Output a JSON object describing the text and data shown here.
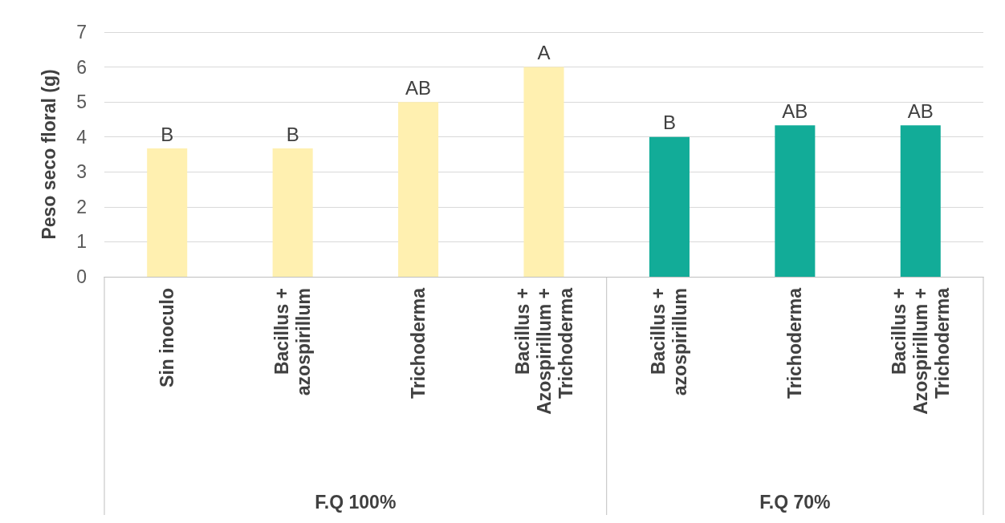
{
  "chart_data": {
    "type": "bar",
    "ylabel": "Peso seco floral (g)",
    "categories": [
      "Sin inoculo",
      "Bacillus + azospirillum",
      "Trichoderma",
      "Bacillus + Azospirillum + Trichoderma",
      "Bacillus + azospirillum",
      "Trichoderma",
      "Bacillus + Azospirillum + Trichoderma"
    ],
    "values": [
      3.67,
      3.67,
      5,
      6,
      4,
      4.33,
      4.33
    ],
    "colors": [
      "#fff0b0",
      "#fff0b0",
      "#fff0b0",
      "#fff0b0",
      "#12ac98",
      "#12ac98",
      "#12ac98"
    ],
    "value_labels": [
      "B",
      "B",
      "AB",
      "A",
      "B",
      "AB",
      "AB"
    ],
    "annotations": [
      "F.Q 100%",
      "F.Q 70%"
    ],
    "ylim": [
      0,
      7
    ],
    "yticks": [
      0,
      1,
      2,
      3,
      4,
      5,
      6,
      7
    ],
    "grid": "y"
  }
}
